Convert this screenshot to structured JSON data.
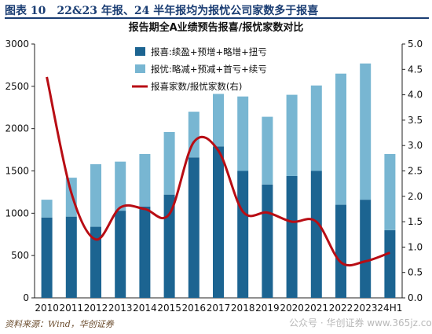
{
  "figure": {
    "title": "图表 10　22&23 年报、24 半年报均为报忧公司家数多于报喜",
    "source": "资料来源：Wind，华创证券",
    "watermark": "公众号 · 华创证券  www.365jz.com"
  },
  "colors": {
    "good": "#1c6491",
    "bad": "#78b6d2",
    "ratio": "#b80d14",
    "title": "#1a3d73"
  },
  "chart_data": {
    "type": "bar",
    "stacked": true,
    "title": "报告期全A业绩预告报喜/报忧家数对比",
    "categories": [
      "2010",
      "2011",
      "2012",
      "2013",
      "2014",
      "2015",
      "2016",
      "2017",
      "2018",
      "2019",
      "2020",
      "2021",
      "2022",
      "2023",
      "24H1"
    ],
    "series": [
      {
        "name": "报喜:续盈+预增+略增+扭亏",
        "type": "bar",
        "axis": "left",
        "values": [
          950,
          960,
          840,
          1030,
          1080,
          1220,
          1660,
          1790,
          1500,
          1340,
          1440,
          1500,
          1100,
          1160,
          800
        ]
      },
      {
        "name": "报忧:略减+预减+首亏+续亏",
        "type": "bar",
        "axis": "left",
        "values": [
          210,
          460,
          740,
          580,
          620,
          740,
          540,
          620,
          880,
          800,
          960,
          1010,
          1550,
          1610,
          900
        ]
      },
      {
        "name": "报喜家数/报忧家数(右)",
        "type": "line",
        "axis": "right",
        "values": [
          4.35,
          2.07,
          1.15,
          1.78,
          1.75,
          1.65,
          3.07,
          2.9,
          1.7,
          1.68,
          1.5,
          1.5,
          0.7,
          0.72,
          0.89
        ]
      }
    ],
    "ylim_left": [
      0,
      3000
    ],
    "yticks_left": [
      0,
      500,
      1000,
      1500,
      2000,
      2500,
      3000
    ],
    "ylim_right": [
      0,
      5
    ],
    "yticks_right": [
      "0.0",
      "0.5",
      "1.0",
      "1.5",
      "2.0",
      "2.5",
      "3.0",
      "3.5",
      "4.0",
      "4.5",
      "5.0"
    ],
    "grid": false,
    "legend": "top-left"
  }
}
